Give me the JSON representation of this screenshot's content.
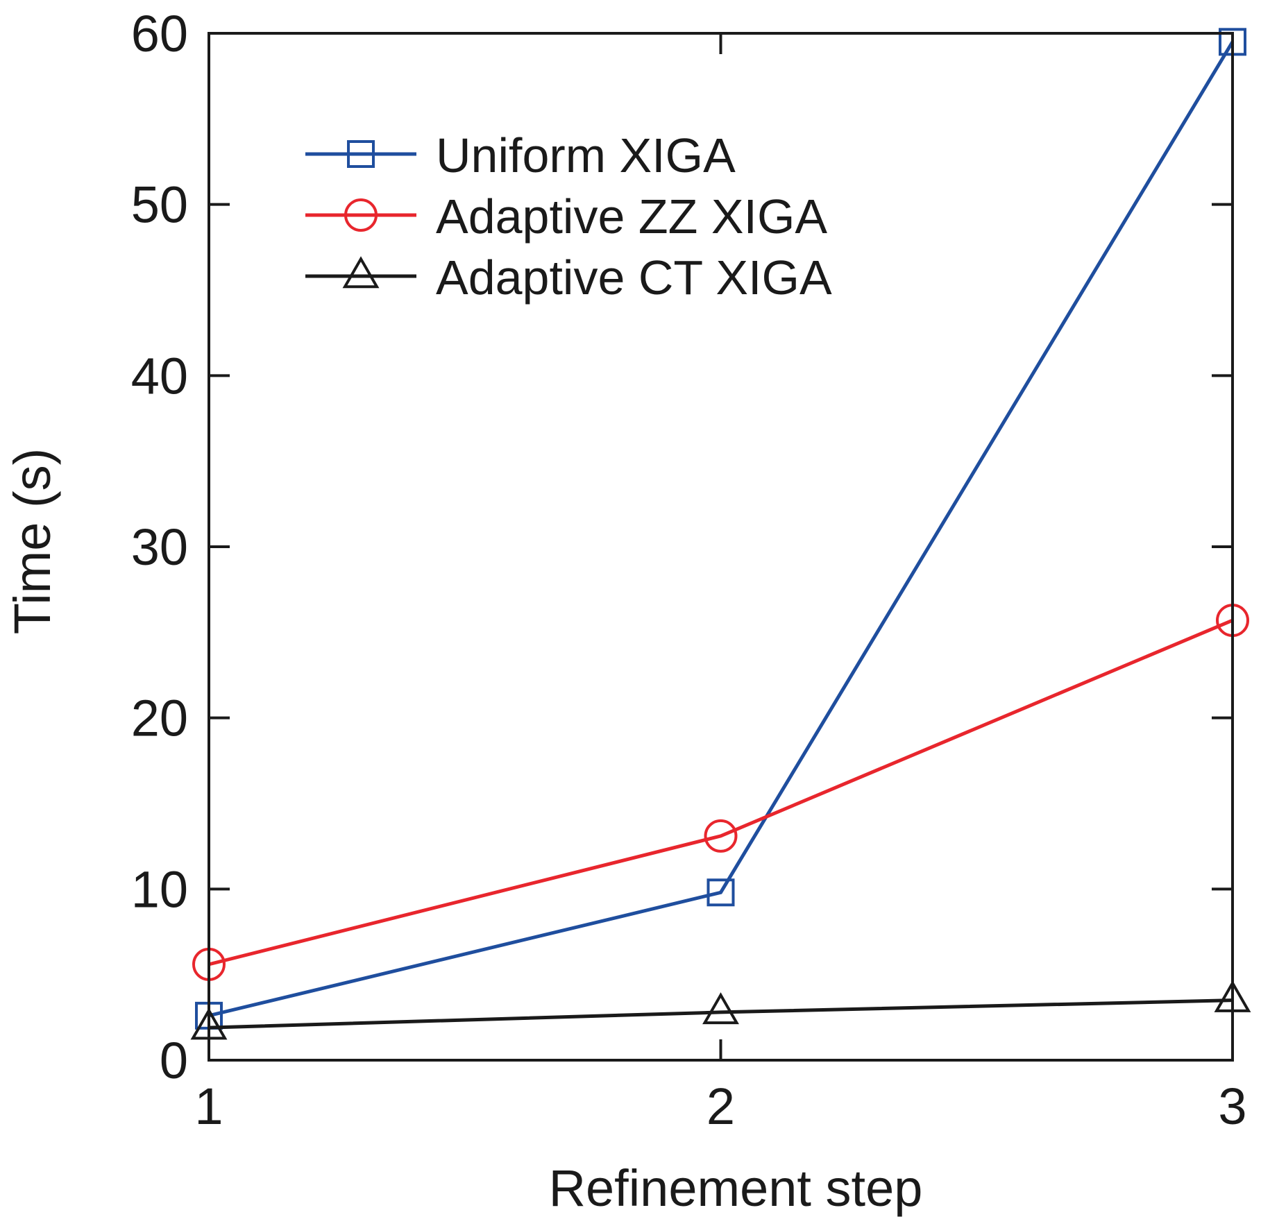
{
  "chart_data": {
    "type": "line",
    "title": "",
    "xlabel": "Refinement step",
    "ylabel": "Time (s)",
    "x": [
      1,
      2,
      3
    ],
    "x_ticks": [
      "1",
      "2",
      "3"
    ],
    "y_ticks": [
      "0",
      "10",
      "20",
      "30",
      "40",
      "50",
      "60"
    ],
    "xlim": [
      1,
      3
    ],
    "ylim": [
      0,
      60
    ],
    "grid": false,
    "legend_position": "top-left",
    "series": [
      {
        "name": "Uniform XIGA",
        "values": [
          2.6,
          9.8,
          59.5
        ],
        "color": "#1f4e9e",
        "marker": "square"
      },
      {
        "name": "Adaptive ZZ XIGA",
        "values": [
          5.6,
          13.1,
          25.7
        ],
        "color": "#e8262d",
        "marker": "circle"
      },
      {
        "name": "Adaptive CT XIGA",
        "values": [
          1.9,
          2.8,
          3.5
        ],
        "color": "#1a1a1a",
        "marker": "triangle"
      }
    ]
  }
}
